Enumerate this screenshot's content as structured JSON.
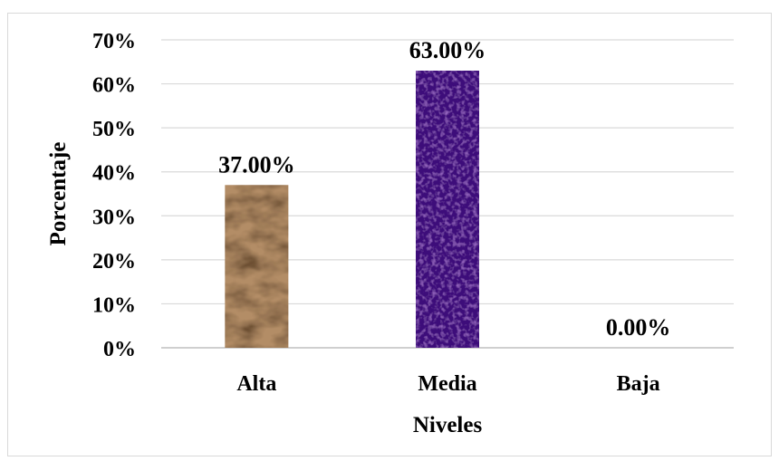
{
  "chart_data": {
    "type": "bar",
    "categories": [
      "Alta",
      "Media",
      "Baja"
    ],
    "values": [
      37.0,
      63.0,
      0.0
    ],
    "data_labels": [
      "37.00%",
      "63.00%",
      "0.00%"
    ],
    "yticks": [
      "0%",
      "10%",
      "20%",
      "30%",
      "40%",
      "50%",
      "60%",
      "70%"
    ],
    "ylim": [
      0,
      70
    ],
    "xlabel": "Niveles",
    "ylabel": "Porcentaje",
    "title": "",
    "grid": true,
    "legend": "none",
    "bar_colors": [
      "#b38d66",
      "#3c0e7a",
      "#3c0e7a"
    ]
  }
}
